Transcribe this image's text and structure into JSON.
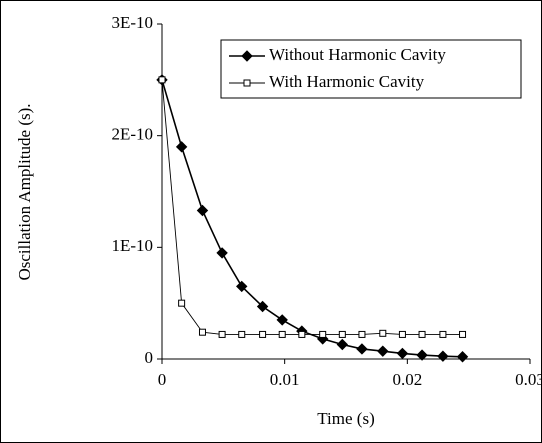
{
  "chart_data": {
    "type": "line",
    "xlabel": "Time (s)",
    "ylabel": "Oscillation Amplitude (s).",
    "xlim": [
      0,
      0.03
    ],
    "xticks": [
      0,
      0.01,
      0.02,
      0.03
    ],
    "ylim": [
      0,
      3e-10
    ],
    "yticks": [
      0,
      {
        "value": 1e-10,
        "label": "1E-10"
      },
      {
        "value": 2e-10,
        "label": "2E-10"
      },
      {
        "value": 3e-10,
        "label": "3E-10"
      }
    ],
    "grid": false,
    "legend": "upper right",
    "series": [
      {
        "name": "Without Harmonic Cavity",
        "color": "#000000",
        "marker": "diamond",
        "x": [
          0,
          0.0016,
          0.0033,
          0.0049,
          0.0065,
          0.0082,
          0.0098,
          0.0114,
          0.0131,
          0.0147,
          0.0163,
          0.018,
          0.0196,
          0.0212,
          0.0229,
          0.0245
        ],
        "values": [
          2.5e-10,
          1.9e-10,
          1.33e-10,
          9.5e-11,
          6.5e-11,
          4.7e-11,
          3.5e-11,
          2.5e-11,
          1.8e-11,
          1.3e-11,
          9e-12,
          7e-12,
          5e-12,
          3.5e-12,
          2.5e-12,
          2e-12
        ]
      },
      {
        "name": "With Harmonic Cavity",
        "color": "#000000",
        "marker": "square",
        "x": [
          0,
          0.0016,
          0.0033,
          0.0049,
          0.0065,
          0.0082,
          0.0098,
          0.0114,
          0.0131,
          0.0147,
          0.0163,
          0.018,
          0.0196,
          0.0212,
          0.0229,
          0.0245
        ],
        "values": [
          2.5e-10,
          5e-11,
          2.4e-11,
          2.2e-11,
          2.2e-11,
          2.2e-11,
          2.2e-11,
          2.2e-11,
          2.2e-11,
          2.2e-11,
          2.2e-11,
          2.3e-11,
          2.2e-11,
          2.2e-11,
          2.2e-11,
          2.2e-11
        ]
      }
    ]
  }
}
